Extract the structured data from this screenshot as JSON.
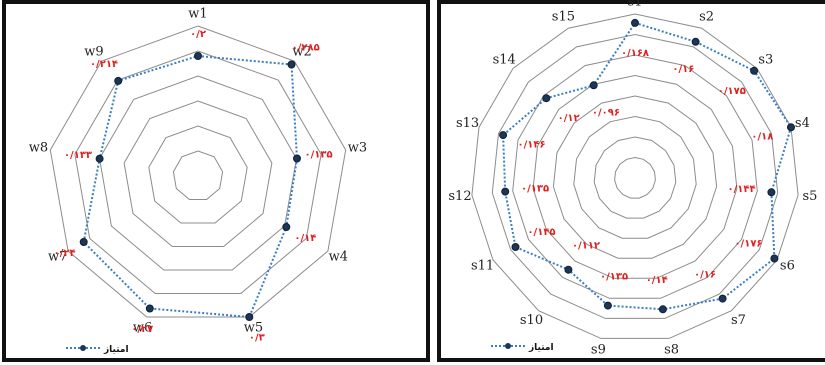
{
  "chart_data": [
    {
      "type": "radar",
      "id": "left",
      "legend": "امتیاز",
      "legend_position": "bottom-left",
      "series_color": "#3a7fc1",
      "label_color": "#e0201f",
      "axes": [
        "w1",
        "w2",
        "w3",
        "w4",
        "w5",
        "w6",
        "w7",
        "w8",
        "w9"
      ],
      "values": [
        0.2,
        0.285,
        0.135,
        0.14,
        0.3,
        0.27,
        0.24,
        0.133,
        0.214
      ],
      "value_labels": [
        "۰/۲",
        "۰/۲۸۵",
        "۰/۱۳۵",
        "۰/۱۴",
        "۰/۳",
        "۰/۲۷",
        "۰/۲۴",
        "۰/۱۳۳",
        "۰/۲۱۴"
      ],
      "rmax": 0.3,
      "rings": 6
    },
    {
      "type": "radar",
      "id": "right",
      "legend": "امتیاز",
      "legend_position": "bottom-left",
      "series_color": "#3a7fc1",
      "label_color": "#e0201f",
      "axes": [
        "s1",
        "s2",
        "s3",
        "s4",
        "s5",
        "s6",
        "s7",
        "s8",
        "s9",
        "s10",
        "s11",
        "s12",
        "s13",
        "s14",
        "s15"
      ],
      "values": [
        0.168,
        0.16,
        0.175,
        0.18,
        0.144,
        0.176,
        0.16,
        0.14,
        0.135,
        0.112,
        0.145,
        0.135,
        0.146,
        0.12,
        0.096
      ],
      "value_labels": [
        "۰/۱۶۸",
        "۰/۱۶",
        "۰/۱۷۵",
        "۰/۱۸",
        "۰/۱۴۴",
        "۰/۱۷۶",
        "۰/۱۶",
        "۰/۱۴",
        "۰/۱۳۵",
        "۰/۱۱۲",
        "۰/۱۴۵",
        "۰/۱۳۵",
        "۰/۱۴۶",
        "۰/۱۲",
        "۰/۰۹۶"
      ],
      "rmax": 0.18,
      "rings": 8
    }
  ]
}
